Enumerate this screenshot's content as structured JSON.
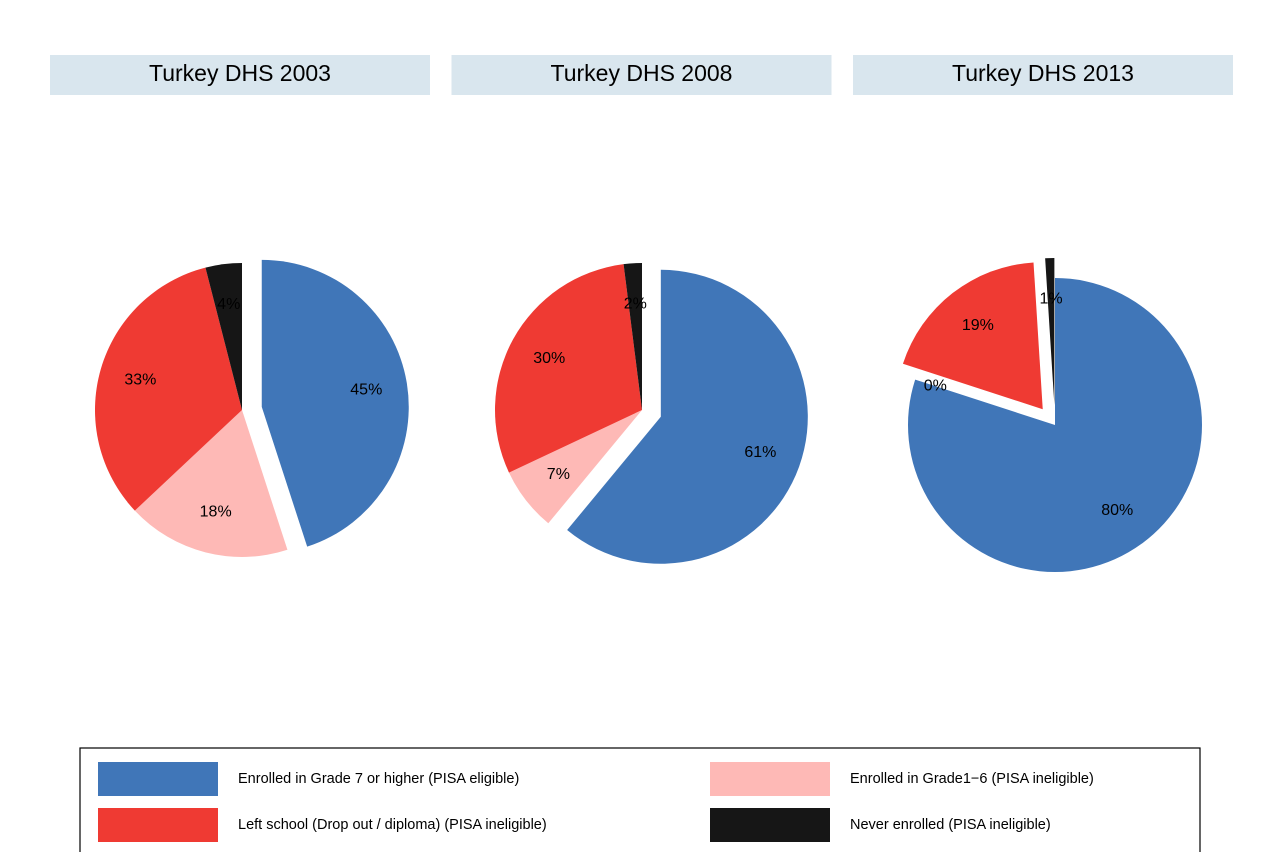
{
  "chart_data": [
    {
      "type": "pie",
      "title": "Turkey DHS 2003",
      "values": [
        45,
        18,
        33,
        4
      ],
      "value_labels": [
        "45%",
        "18%",
        "33%",
        "4%"
      ],
      "explode": [
        true,
        false,
        false,
        false
      ]
    },
    {
      "type": "pie",
      "title": "Turkey DHS 2008",
      "values": [
        61,
        7,
        30,
        2
      ],
      "value_labels": [
        "61%",
        "7%",
        "30%",
        "2%"
      ],
      "explode": [
        true,
        false,
        false,
        false
      ]
    },
    {
      "type": "pie",
      "title": "Turkey DHS 2013",
      "values": [
        80,
        0,
        19,
        1
      ],
      "value_labels": [
        "80%",
        "0%",
        "19%",
        "1%"
      ],
      "explode": [
        false,
        true,
        true,
        true
      ]
    }
  ],
  "legend": {
    "labels": [
      "Enrolled in Grade 7 or higher (PISA eligible)",
      "Enrolled in Grade1−6 (PISA ineligible)",
      "Left school (Drop out / diploma) (PISA ineligible)",
      "Never enrolled (PISA ineligible)"
    ],
    "colors": [
      "#4076b8",
      "#feb9b6",
      "#ef3a33",
      "#161616"
    ]
  }
}
